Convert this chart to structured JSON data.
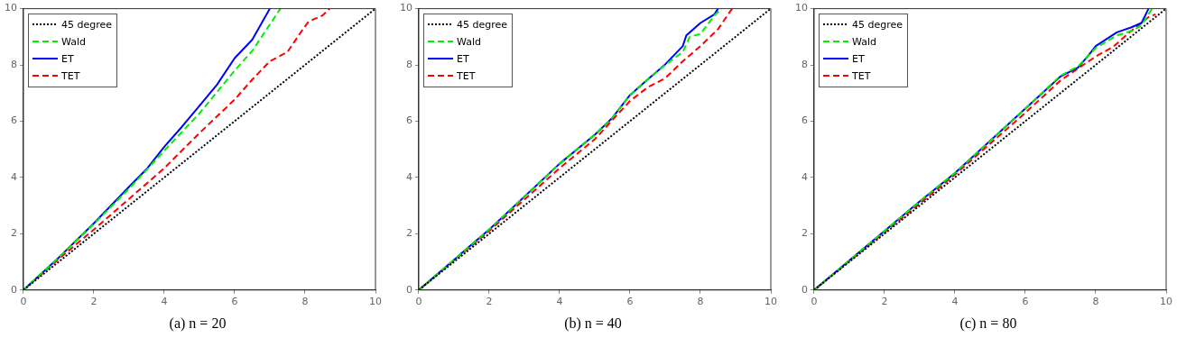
{
  "chart_data": [
    {
      "type": "line",
      "title": "(a) n = 20",
      "xlim": [
        0,
        10
      ],
      "ylim": [
        0,
        10
      ],
      "xticks": [
        0,
        2,
        4,
        6,
        8,
        10
      ],
      "yticks": [
        0,
        2,
        4,
        6,
        8,
        10
      ],
      "grid": false,
      "legend": "top left",
      "marker": "none",
      "series": [
        {
          "name": "45 degree",
          "color": "#000000",
          "line_style": "dotted",
          "x": [
            0,
            10
          ],
          "values": [
            0,
            10
          ]
        },
        {
          "name": "Wald",
          "color": "#00ee00",
          "line_style": "dashed",
          "x": [
            0,
            1,
            2,
            3,
            4,
            5,
            6,
            6.5,
            7.3
          ],
          "values": [
            0,
            1.15,
            2.35,
            3.6,
            4.95,
            6.28,
            7.8,
            8.5,
            10
          ]
        },
        {
          "name": "ET",
          "color": "#0000ff",
          "line_style": "solid",
          "x": [
            0,
            1,
            2,
            3,
            3.5,
            4,
            4.5,
            5,
            5.5,
            6,
            6.5,
            7
          ],
          "values": [
            0,
            1.15,
            2.37,
            3.67,
            4.3,
            5.09,
            5.8,
            6.55,
            7.3,
            8.24,
            8.9,
            10
          ]
        },
        {
          "name": "TET",
          "color": "#ff0000",
          "line_style": "dashed",
          "x": [
            0,
            1,
            2,
            3,
            4,
            5,
            6,
            6.5,
            7,
            7.5,
            7.9,
            8.1,
            8.5,
            8.7
          ],
          "values": [
            0,
            1.1,
            2.15,
            3.24,
            4.33,
            5.58,
            6.77,
            7.48,
            8.13,
            8.46,
            9.2,
            9.54,
            9.76,
            10
          ]
        }
      ]
    },
    {
      "type": "line",
      "title": "(b) n = 40",
      "xlim": [
        0,
        10
      ],
      "ylim": [
        0,
        10
      ],
      "xticks": [
        0,
        2,
        4,
        6,
        8,
        10
      ],
      "yticks": [
        0,
        2,
        4,
        6,
        8,
        10
      ],
      "grid": false,
      "legend": "top left",
      "marker": "none",
      "series": [
        {
          "name": "45 degree",
          "color": "#000000",
          "line_style": "dotted",
          "x": [
            0,
            10
          ],
          "values": [
            0,
            10
          ]
        },
        {
          "name": "Wald",
          "color": "#00ee00",
          "line_style": "dashed",
          "x": [
            0,
            2,
            4,
            5,
            5.5,
            6,
            6.5,
            7,
            7.5,
            7.7,
            8,
            8.4,
            8.6
          ],
          "values": [
            0,
            2.15,
            4.49,
            5.52,
            6.12,
            6.93,
            7.48,
            8.0,
            8.46,
            9.0,
            9.1,
            9.76,
            10
          ]
        },
        {
          "name": "ET",
          "color": "#0000ff",
          "line_style": "solid",
          "x": [
            0,
            2,
            4,
            5,
            5.5,
            6,
            6.5,
            7,
            7.5,
            7.6,
            8,
            8.4,
            8.5
          ],
          "values": [
            0,
            2.15,
            4.49,
            5.52,
            6.12,
            6.93,
            7.48,
            8.02,
            8.67,
            9.05,
            9.49,
            9.8,
            10
          ]
        },
        {
          "name": "TET",
          "color": "#ff0000",
          "line_style": "dashed",
          "x": [
            0,
            2,
            4,
            5,
            6,
            6.5,
            7,
            7.5,
            8,
            8.5,
            8.9
          ],
          "values": [
            0,
            2.1,
            4.33,
            5.36,
            6.72,
            7.2,
            7.53,
            8.13,
            8.67,
            9.27,
            10
          ]
        }
      ]
    },
    {
      "type": "line",
      "title": "(c) n = 80",
      "xlim": [
        0,
        10
      ],
      "ylim": [
        0,
        10
      ],
      "xticks": [
        0,
        2,
        4,
        6,
        8,
        10
      ],
      "yticks": [
        0,
        2,
        4,
        6,
        8,
        10
      ],
      "grid": false,
      "legend": "top left",
      "marker": "none",
      "series": [
        {
          "name": "45 degree",
          "color": "#000000",
          "line_style": "dotted",
          "x": [
            0,
            10
          ],
          "values": [
            0,
            10
          ]
        },
        {
          "name": "Wald",
          "color": "#00ee00",
          "line_style": "dashed",
          "x": [
            0,
            2,
            3,
            4,
            5,
            6,
            7,
            7.5,
            8,
            8.6,
            9,
            9.3,
            9.6
          ],
          "values": [
            0,
            2.1,
            3.15,
            4.16,
            5.3,
            6.45,
            7.62,
            7.95,
            8.6,
            9.05,
            9.2,
            9.4,
            10
          ]
        },
        {
          "name": "ET",
          "color": "#0000ff",
          "line_style": "solid",
          "x": [
            0,
            2,
            3,
            4,
            5,
            6,
            7,
            7.5,
            7.8,
            8,
            8.6,
            9,
            9.3,
            9.5
          ],
          "values": [
            0,
            2.1,
            3.15,
            4.16,
            5.3,
            6.45,
            7.59,
            7.91,
            8.35,
            8.67,
            9.16,
            9.33,
            9.49,
            10
          ]
        },
        {
          "name": "TET",
          "color": "#ff0000",
          "line_style": "dashed",
          "x": [
            0,
            2,
            4,
            5,
            6,
            7,
            8,
            8.5,
            9,
            9.5,
            9.7
          ],
          "values": [
            0,
            2.05,
            4.1,
            5.2,
            6.3,
            7.45,
            8.3,
            8.65,
            9.2,
            9.7,
            9.8
          ]
        }
      ]
    }
  ]
}
